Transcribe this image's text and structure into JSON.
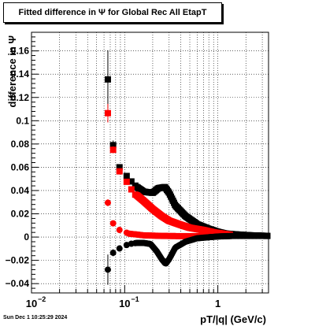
{
  "title": "Fitted difference in  Ψ  for Global Rec All EtapT",
  "timestamp": "Sun Dec  1 10:25:29 2024",
  "chart_data": {
    "type": "scatter",
    "title": "Fitted difference in  Ψ  for Global Rec All EtapT",
    "xlabel": "pT/|q| (GeV/c)",
    "ylabel": "difference in Ψ",
    "xscale": "log",
    "xlim": [
      0.01,
      3.5
    ],
    "ylim": [
      -0.048,
      0.176
    ],
    "x_ticks": [
      {
        "v": 0.01,
        "label": "10",
        "sup": "−2"
      },
      {
        "v": 0.1,
        "label": "10",
        "sup": "−1"
      },
      {
        "v": 1,
        "label": "1",
        "sup": ""
      }
    ],
    "y_ticks": [
      {
        "v": -0.04,
        "label": "−0.04"
      },
      {
        "v": -0.02,
        "label": "−0.02"
      },
      {
        "v": 0,
        "label": "0"
      },
      {
        "v": 0.02,
        "label": "0.02"
      },
      {
        "v": 0.04,
        "label": "0.04"
      },
      {
        "v": 0.06,
        "label": "0.06"
      },
      {
        "v": 0.08,
        "label": "0.08"
      },
      {
        "v": 0.1,
        "label": "0.1"
      },
      {
        "v": 0.12,
        "label": "0.12"
      },
      {
        "v": 0.14,
        "label": "0.14"
      },
      {
        "v": 0.16,
        "label": "0.16"
      }
    ],
    "grid": true,
    "series": [
      {
        "marker": "square",
        "color": "#000000",
        "points": [
          {
            "x": 0.066,
            "y": 0.1355,
            "err": 0.025
          },
          {
            "x": 0.0752,
            "y": 0.079,
            "err": 0.004
          },
          {
            "x": 0.088,
            "y": 0.06
          },
          {
            "x": 0.105,
            "y": 0.0525
          },
          {
            "x": 0.118,
            "y": 0.0478
          },
          {
            "x": 0.13,
            "y": 0.0442
          }
        ]
      },
      {
        "marker": "square",
        "color": "#ff0000",
        "points": [
          {
            "x": 0.066,
            "y": 0.1065,
            "err": 0.008
          },
          {
            "x": 0.0752,
            "y": 0.075,
            "err": 0.003
          },
          {
            "x": 0.088,
            "y": 0.0565
          },
          {
            "x": 0.105,
            "y": 0.0475
          },
          {
            "x": 0.118,
            "y": 0.041
          },
          {
            "x": 0.13,
            "y": 0.0365
          }
        ]
      },
      {
        "marker": "circle",
        "color": "#ff0000",
        "points": [
          {
            "x": 0.066,
            "y": 0.0295,
            "err": 0.003
          },
          {
            "x": 0.0752,
            "y": 0.0118
          },
          {
            "x": 0.088,
            "y": 0.0061
          },
          {
            "x": 0.105,
            "y": 0.0038
          }
        ]
      },
      {
        "marker": "circle",
        "color": "#000000",
        "points": [
          {
            "x": 0.066,
            "y": -0.028,
            "err": 0.013
          },
          {
            "x": 0.0752,
            "y": -0.0135,
            "err": 0.003
          },
          {
            "x": 0.088,
            "y": -0.0098
          },
          {
            "x": 0.105,
            "y": -0.0068
          },
          {
            "x": 0.118,
            "y": -0.0057
          },
          {
            "x": 0.13,
            "y": -0.0052
          }
        ]
      }
    ],
    "dense_curves": [
      {
        "marker": "square",
        "color": "#000000",
        "x_range": [
          0.135,
          3.4
        ],
        "anchors": [
          [
            0.135,
            0.043
          ],
          [
            0.16,
            0.039
          ],
          [
            0.2,
            0.038
          ],
          [
            0.23,
            0.042
          ],
          [
            0.27,
            0.043
          ],
          [
            0.3,
            0.038
          ],
          [
            0.35,
            0.027
          ],
          [
            0.45,
            0.018
          ],
          [
            0.6,
            0.011
          ],
          [
            0.8,
            0.007
          ],
          [
            1.0,
            0.0045
          ],
          [
            1.2,
            0.003
          ],
          [
            1.6,
            0.0022
          ],
          [
            2.2,
            0.0015
          ],
          [
            3.4,
            0.001
          ]
        ]
      },
      {
        "marker": "square",
        "color": "#ff0000",
        "x_range": [
          0.135,
          1.35
        ],
        "anchors": [
          [
            0.135,
            0.036
          ],
          [
            0.16,
            0.031
          ],
          [
            0.2,
            0.024
          ],
          [
            0.25,
            0.018
          ],
          [
            0.3,
            0.014
          ],
          [
            0.4,
            0.0105
          ],
          [
            0.5,
            0.008
          ],
          [
            0.7,
            0.006
          ],
          [
            0.9,
            0.004
          ],
          [
            1.1,
            0.003
          ],
          [
            1.35,
            0.002
          ]
        ]
      },
      {
        "marker": "circle",
        "color": "#ff0000",
        "x_range": [
          0.11,
          1.4
        ],
        "anchors": [
          [
            0.11,
            0.003
          ],
          [
            0.16,
            0.0015
          ],
          [
            0.25,
            0.001
          ],
          [
            0.4,
            0.0008
          ],
          [
            0.6,
            0.0008
          ],
          [
            0.9,
            0.0009
          ],
          [
            1.2,
            0.001
          ],
          [
            1.4,
            0.001
          ]
        ]
      },
      {
        "marker": "circle",
        "color": "#000000",
        "x_range": [
          0.135,
          3.4
        ],
        "anchors": [
          [
            0.135,
            -0.005
          ],
          [
            0.16,
            -0.005
          ],
          [
            0.19,
            -0.006
          ],
          [
            0.22,
            -0.012
          ],
          [
            0.25,
            -0.019
          ],
          [
            0.275,
            -0.023
          ],
          [
            0.3,
            -0.019
          ],
          [
            0.35,
            -0.009
          ],
          [
            0.45,
            -0.004
          ],
          [
            0.6,
            -0.001
          ],
          [
            1.0,
            0.0005
          ],
          [
            1.5,
            0.001
          ],
          [
            2.5,
            0.001
          ],
          [
            3.4,
            0.001
          ]
        ]
      }
    ]
  }
}
